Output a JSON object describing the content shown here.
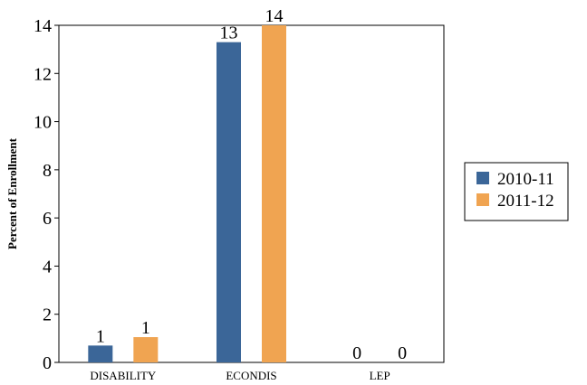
{
  "chart_data": {
    "type": "bar",
    "categories": [
      "DISABILITY",
      "ECONDIS",
      "LEP"
    ],
    "series": [
      {
        "name": "2010-11",
        "values": [
          0.7,
          13.3,
          0
        ],
        "labels": [
          "1",
          "13",
          "0"
        ],
        "color": "#3b6698"
      },
      {
        "name": "2011-12",
        "values": [
          1.05,
          14.0,
          0
        ],
        "labels": [
          "1",
          "14",
          "0"
        ],
        "color": "#f0a451"
      }
    ],
    "title": "",
    "xlabel": "",
    "ylabel": "Percent of Enrollment",
    "ylim": [
      0,
      14
    ],
    "yticks": [
      0,
      2,
      4,
      6,
      8,
      10,
      12,
      14
    ],
    "grid": false,
    "legend": "right"
  }
}
